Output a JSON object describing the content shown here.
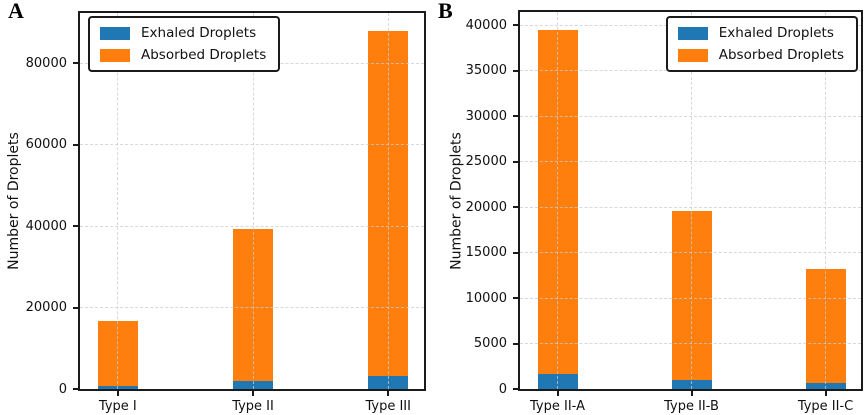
{
  "figure": {
    "background": "#ffffff",
    "grid_color": "#cccccc",
    "axis_color": "#1a1a1a"
  },
  "chart_data": [
    {
      "type": "bar",
      "stacked": true,
      "panel_label": "A",
      "title": "",
      "xlabel": "",
      "ylabel": "Number of Droplets",
      "categories": [
        "Type I",
        "Type II",
        "Type III"
      ],
      "series": [
        {
          "name": "Exhaled Droplets",
          "color": "#1f77b4",
          "values": [
            800,
            1900,
            3300
          ]
        },
        {
          "name": "Absorbed Droplets",
          "color": "#ff7f0e",
          "values": [
            16000,
            37500,
            84700
          ]
        }
      ],
      "stack_totals": [
        16800,
        39400,
        88000
      ],
      "yticks": [
        0,
        20000,
        40000,
        60000,
        80000
      ],
      "ylim": [
        0,
        92400
      ],
      "grid": true,
      "legend_position": "upper left",
      "legend_items": [
        "Exhaled Droplets",
        "Absorbed Droplets"
      ]
    },
    {
      "type": "bar",
      "stacked": true,
      "panel_label": "B",
      "title": "",
      "xlabel": "",
      "ylabel": "Number of Droplets",
      "categories": [
        "Type II-A",
        "Type II-B",
        "Type II-C"
      ],
      "series": [
        {
          "name": "Exhaled Droplets",
          "color": "#1f77b4",
          "values": [
            1700,
            1000,
            650
          ]
        },
        {
          "name": "Absorbed Droplets",
          "color": "#ff7f0e",
          "values": [
            37800,
            18600,
            12550
          ]
        }
      ],
      "stack_totals": [
        39500,
        19600,
        13200
      ],
      "yticks": [
        0,
        5000,
        10000,
        15000,
        20000,
        25000,
        30000,
        35000,
        40000
      ],
      "ylim": [
        0,
        41475
      ],
      "grid": true,
      "legend_position": "upper right",
      "legend_items": [
        "Exhaled Droplets",
        "Absorbed Droplets"
      ]
    }
  ]
}
